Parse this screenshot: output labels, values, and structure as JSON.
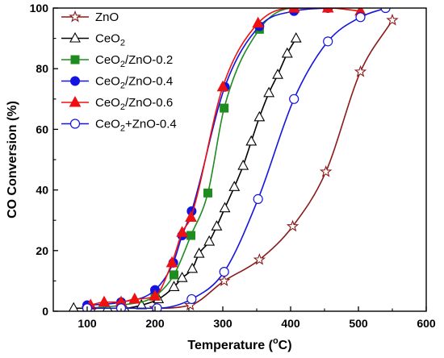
{
  "chart_data": {
    "type": "line",
    "xlabel": "Temperature (°C)",
    "xlabel_parts": {
      "pre": "Temperature (",
      "sup": "o",
      "post": "C)"
    },
    "ylabel": "CO Conversion (%)",
    "xlim": [
      50,
      600
    ],
    "ylim": [
      0,
      100
    ],
    "xticks": [
      100,
      200,
      300,
      400,
      500,
      600
    ],
    "yticks": [
      0,
      20,
      40,
      60,
      80,
      100
    ],
    "xticks_minor": [
      150,
      250,
      350,
      450,
      550
    ],
    "yticks_minor": [
      10,
      30,
      50,
      70,
      90
    ],
    "grid": false,
    "legend_position": "top-left",
    "series": [
      {
        "name": "ZnO",
        "legend_parts": [
          {
            "text": "ZnO"
          }
        ],
        "color": "#8b1a1a",
        "marker": "star-open",
        "x": [
          100,
          150,
          200,
          252,
          302,
          354,
          403,
          452,
          503,
          550
        ],
        "y": [
          1,
          1,
          1,
          2,
          10,
          17,
          28,
          46,
          79,
          96
        ]
      },
      {
        "name": "CeO2",
        "legend_parts": [
          {
            "text": "CeO"
          },
          {
            "text": "2",
            "sub": true
          }
        ],
        "color": "#000000",
        "marker": "triangle-open",
        "x": [
          80,
          105,
          130,
          155,
          180,
          205,
          228,
          240,
          255,
          265,
          280,
          291,
          303,
          317,
          330,
          342,
          354,
          368,
          381,
          395,
          408
        ],
        "y": [
          1,
          1,
          1,
          1,
          2,
          4,
          8,
          11,
          14,
          19,
          23,
          28,
          34,
          41,
          48,
          56,
          64,
          72,
          78,
          85,
          90
        ]
      },
      {
        "name": "CeO2/ZnO-0.2",
        "legend_parts": [
          {
            "text": "CeO"
          },
          {
            "text": "2",
            "sub": true
          },
          {
            "text": "/ZnO-0.2"
          }
        ],
        "color": "#1e8c1e",
        "marker": "square-filled",
        "x": [
          100,
          150,
          200,
          228,
          253,
          278,
          302,
          354,
          405,
          455
        ],
        "y": [
          1,
          2,
          5,
          12,
          25,
          39,
          67,
          93,
          100,
          100
        ]
      },
      {
        "name": "CeO2/ZnO-0.4",
        "legend_parts": [
          {
            "text": "CeO"
          },
          {
            "text": "2",
            "sub": true
          },
          {
            "text": "/ZnO-0.4"
          }
        ],
        "color": "#1414e0",
        "marker": "circle-filled",
        "x": [
          100,
          150,
          200,
          227,
          240,
          254,
          303,
          354,
          405,
          455
        ],
        "y": [
          2,
          3,
          7,
          16,
          25,
          33,
          74,
          94,
          99,
          100
        ]
      },
      {
        "name": "CeO2/ZnO-0.6",
        "legend_parts": [
          {
            "text": "CeO"
          },
          {
            "text": "2",
            "sub": true
          },
          {
            "text": "/ZnO-0.6"
          }
        ],
        "color": "#ee1111",
        "marker": "triangle-filled",
        "x": [
          105,
          125,
          150,
          170,
          200,
          225,
          240,
          253,
          300,
          352,
          405,
          455,
          503
        ],
        "y": [
          2,
          3,
          3,
          4,
          5,
          16,
          26,
          31,
          74,
          95,
          100,
          100,
          99
        ]
      },
      {
        "name": "CeO2+ZnO-0.4",
        "legend_parts": [
          {
            "text": "CeO"
          },
          {
            "text": "2",
            "sub": true
          },
          {
            "text": "+ZnO-0.4"
          }
        ],
        "color": "#1414e0",
        "marker": "circle-open",
        "x": [
          100,
          150,
          203,
          254,
          302,
          352,
          405,
          455,
          503,
          540
        ],
        "y": [
          1,
          1,
          1,
          4,
          13,
          37,
          70,
          89,
          97,
          100
        ]
      }
    ]
  }
}
